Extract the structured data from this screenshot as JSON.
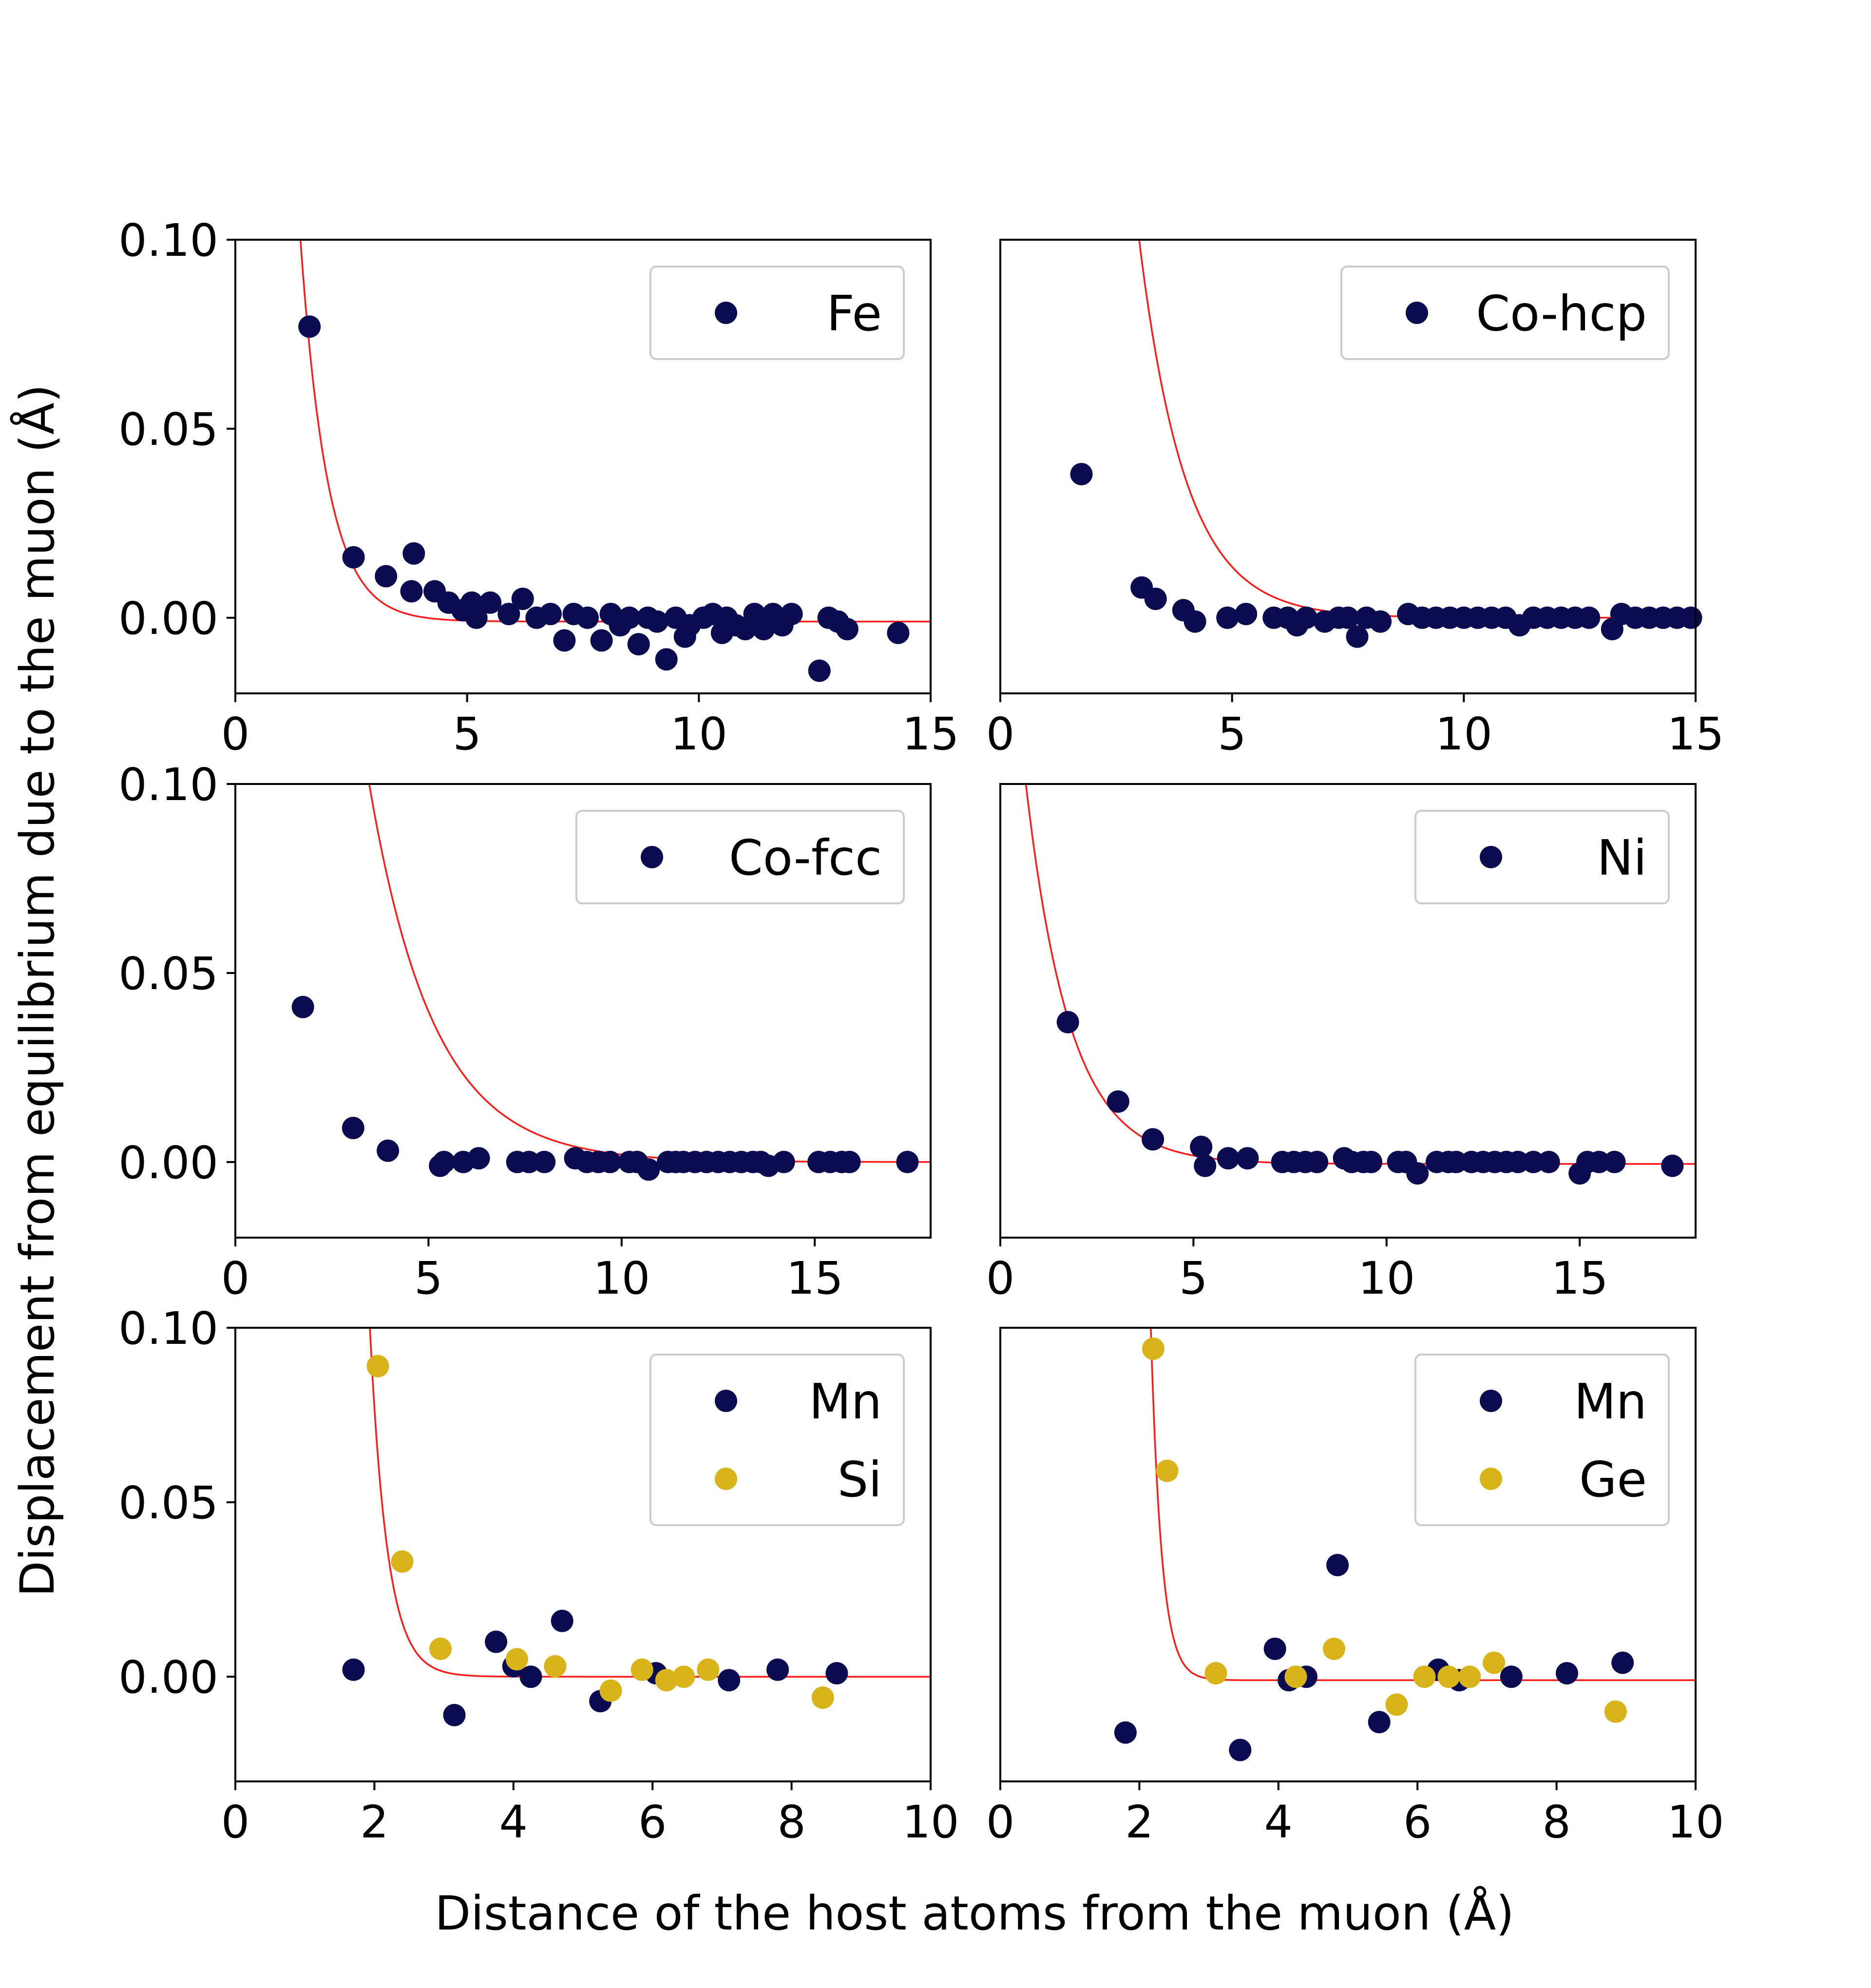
{
  "colors": {
    "host_a": "#0b0b52",
    "host_b": "#d8b41a",
    "fit": "#ff1a1a",
    "axes": "#000000",
    "legend_edge": "#cccccc"
  },
  "figure": {
    "xlabel": "Distance of the host atoms from the muon (Å)",
    "ylabel": "Displacement from equilibrium due to the muon (Å)"
  },
  "chart_data": [
    {
      "type": "scatter",
      "panel": "top-left",
      "xlim": [
        0,
        15
      ],
      "ylim": [
        -0.02,
        0.1
      ],
      "xticks": [
        0,
        5,
        10,
        15
      ],
      "yticks": [
        0.0,
        0.05,
        0.1
      ],
      "xtick_labels": [
        "0",
        "5",
        "10",
        "15"
      ],
      "ytick_labels": [
        "0.00",
        "0.05",
        "0.10"
      ],
      "legend_position": "upper-right",
      "fit": {
        "amplitude": 1.1,
        "decay": 1.7,
        "offset": -0.001
      },
      "series": [
        {
          "name": "Fe",
          "color_key": "host_a",
          "x": [
            1.6,
            2.55,
            3.25,
            3.8,
            3.85,
            4.3,
            4.6,
            4.9,
            5.1,
            5.2,
            5.5,
            5.9,
            6.2,
            6.5,
            6.8,
            7.1,
            7.3,
            7.6,
            7.9,
            8.1,
            8.3,
            8.5,
            8.7,
            8.9,
            9.1,
            9.3,
            9.5,
            9.7,
            9.8,
            10.1,
            10.3,
            10.5,
            10.6,
            10.8,
            11.0,
            11.2,
            11.4,
            11.6,
            11.8,
            12.0,
            12.6,
            12.8,
            13.0,
            13.2,
            14.3
          ],
          "y": [
            0.077,
            0.016,
            0.011,
            0.007,
            0.017,
            0.007,
            0.004,
            0.002,
            0.004,
            0.0,
            0.004,
            0.001,
            0.005,
            0.0,
            0.001,
            -0.006,
            0.001,
            0.0,
            -0.006,
            0.001,
            -0.002,
            0.0,
            -0.007,
            0.0,
            -0.001,
            -0.011,
            0.0,
            -0.005,
            -0.002,
            0.0,
            0.001,
            -0.004,
            0.0,
            -0.002,
            -0.003,
            0.001,
            -0.003,
            0.001,
            -0.002,
            0.001,
            -0.014,
            0.0,
            -0.001,
            -0.003,
            -0.004
          ]
        }
      ]
    },
    {
      "type": "scatter",
      "panel": "top-right",
      "xlim": [
        0,
        15
      ],
      "ylim": [
        -0.02,
        0.1
      ],
      "xticks": [
        0,
        5,
        10,
        15
      ],
      "yticks": [],
      "xtick_labels": [
        "0",
        "5",
        "10",
        "15"
      ],
      "ytick_labels": [],
      "legend_position": "upper-right",
      "fit": {
        "amplitude": 2.0,
        "decay": 1.0,
        "offset": 0.0
      },
      "series": [
        {
          "name": "Co-hcp",
          "color_key": "host_a",
          "x": [
            1.75,
            3.05,
            3.35,
            3.95,
            4.2,
            4.9,
            5.3,
            5.9,
            6.2,
            6.4,
            6.6,
            7.0,
            7.3,
            7.5,
            7.7,
            7.9,
            8.2,
            8.8,
            9.1,
            9.4,
            9.7,
            10.0,
            10.3,
            10.6,
            10.9,
            11.2,
            11.5,
            11.8,
            12.1,
            12.4,
            12.7,
            13.2,
            13.4,
            13.7,
            14.0,
            14.3,
            14.6,
            14.9
          ],
          "y": [
            0.038,
            0.008,
            0.005,
            0.002,
            -0.001,
            0.0,
            0.001,
            0.0,
            0.0,
            -0.002,
            0.0,
            -0.001,
            0.0,
            0.0,
            -0.005,
            0.0,
            -0.001,
            0.001,
            0.0,
            0.0,
            0.0,
            0.0,
            0.0,
            0.0,
            0.0,
            -0.002,
            0.0,
            0.0,
            0.0,
            0.0,
            0.0,
            -0.003,
            0.001,
            0.0,
            0.0,
            0.0,
            0.0,
            0.0
          ]
        }
      ]
    },
    {
      "type": "scatter",
      "panel": "middle-left",
      "xlim": [
        0,
        18
      ],
      "ylim": [
        -0.02,
        0.1
      ],
      "xticks": [
        0,
        5,
        10,
        15
      ],
      "yticks": [
        0.0,
        0.05,
        0.1
      ],
      "xtick_labels": [
        "0",
        "5",
        "10",
        "15"
      ],
      "ytick_labels": [
        "0.00",
        "0.05",
        "0.10"
      ],
      "legend_position": "upper-right",
      "fit": {
        "amplitude": 0.8,
        "decay": 0.6,
        "offset": 0.0
      },
      "series": [
        {
          "name": "Co-fcc",
          "color_key": "host_a",
          "x": [
            1.75,
            3.05,
            3.95,
            5.3,
            5.4,
            5.9,
            6.3,
            7.3,
            7.6,
            8.0,
            8.8,
            9.1,
            9.4,
            9.7,
            10.2,
            10.4,
            10.7,
            11.2,
            11.4,
            11.6,
            11.9,
            12.2,
            12.5,
            12.8,
            13.1,
            13.4,
            13.6,
            13.8,
            14.2,
            15.1,
            15.4,
            15.7,
            15.9,
            17.4
          ],
          "y": [
            0.041,
            0.009,
            0.003,
            -0.001,
            0.0,
            0.0,
            0.001,
            0.0,
            0.0,
            0.0,
            0.001,
            0.0,
            0.0,
            0.0,
            0.0,
            0.0,
            -0.002,
            0.0,
            0.0,
            0.0,
            0.0,
            0.0,
            0.0,
            0.0,
            0.0,
            0.0,
            0.0,
            -0.001,
            0.0,
            0.0,
            0.0,
            0.0,
            0.0,
            0.0
          ]
        }
      ]
    },
    {
      "type": "scatter",
      "panel": "middle-right",
      "xlim": [
        0,
        18
      ],
      "ylim": [
        -0.02,
        0.1
      ],
      "xticks": [
        0,
        5,
        10,
        15
      ],
      "yticks": [],
      "xtick_labels": [
        "0",
        "5",
        "10",
        "15"
      ],
      "ytick_labels": [],
      "legend_position": "upper-right",
      "fit": {
        "amplitude": 0.18,
        "decay": 0.88,
        "offset": -0.0005
      },
      "series": [
        {
          "name": "Ni",
          "color_key": "host_a",
          "x": [
            1.75,
            3.05,
            3.95,
            5.2,
            5.3,
            5.9,
            6.4,
            7.3,
            7.6,
            7.9,
            8.2,
            8.9,
            9.1,
            9.4,
            9.6,
            10.3,
            10.5,
            10.8,
            11.3,
            11.6,
            11.8,
            12.2,
            12.5,
            12.8,
            13.1,
            13.4,
            13.8,
            14.2,
            15.0,
            15.2,
            15.5,
            15.9,
            17.4
          ],
          "y": [
            0.037,
            0.016,
            0.006,
            0.004,
            -0.001,
            0.001,
            0.001,
            0.0,
            0.0,
            0.0,
            0.0,
            0.001,
            0.0,
            0.0,
            0.0,
            0.0,
            0.0,
            -0.003,
            0.0,
            0.0,
            0.0,
            0.0,
            0.0,
            0.0,
            0.0,
            0.0,
            0.0,
            0.0,
            -0.003,
            0.0,
            0.0,
            0.0,
            -0.001
          ]
        }
      ]
    },
    {
      "type": "scatter",
      "panel": "bottom-left",
      "xlim": [
        0,
        10
      ],
      "ylim": [
        -0.03,
        0.1
      ],
      "xticks": [
        0,
        2,
        4,
        6,
        8,
        10
      ],
      "yticks": [
        0.0,
        0.05,
        0.1
      ],
      "xtick_labels": [
        "0",
        "2",
        "4",
        "6",
        "8",
        "10"
      ],
      "ytick_labels": [
        "0.00",
        "0.05",
        "0.10"
      ],
      "legend_position": "upper-right",
      "fit": {
        "amplitude": 230,
        "decay": 4.0,
        "offset": 0.0
      },
      "series": [
        {
          "name": "Mn",
          "color_key": "host_a",
          "x": [
            1.7,
            3.15,
            3.75,
            4.0,
            4.25,
            4.7,
            5.25,
            6.05,
            7.1,
            7.8,
            8.65
          ],
          "y": [
            0.002,
            -0.011,
            0.01,
            0.003,
            0.0,
            0.016,
            -0.007,
            0.001,
            -0.001,
            0.002,
            0.001
          ]
        },
        {
          "name": "Si",
          "color_key": "host_b",
          "x": [
            2.05,
            2.4,
            2.95,
            4.05,
            4.6,
            5.4,
            5.85,
            6.2,
            6.45,
            6.8,
            8.45
          ],
          "y": [
            0.089,
            0.033,
            0.008,
            0.005,
            0.003,
            -0.004,
            0.002,
            -0.001,
            0.0,
            0.002,
            -0.006
          ]
        }
      ]
    },
    {
      "type": "scatter",
      "panel": "bottom-right",
      "xlim": [
        0,
        10
      ],
      "ylim": [
        -0.03,
        0.1
      ],
      "xticks": [
        0,
        2,
        4,
        6,
        8,
        10
      ],
      "yticks": [],
      "xtick_labels": [
        "0",
        "2",
        "4",
        "6",
        "8",
        "10"
      ],
      "ytick_labels": [],
      "legend_position": "upper-right",
      "fit": {
        "amplitude": 130000,
        "decay": 6.5,
        "offset": -0.001
      },
      "series": [
        {
          "name": "Mn",
          "color_key": "host_a",
          "x": [
            1.8,
            3.45,
            3.95,
            4.15,
            4.4,
            4.85,
            5.45,
            6.3,
            6.6,
            7.35,
            8.15,
            8.95
          ],
          "y": [
            -0.016,
            -0.021,
            0.008,
            -0.001,
            0.0,
            0.032,
            -0.013,
            0.002,
            -0.001,
            0.0,
            0.001,
            0.004
          ]
        },
        {
          "name": "Ge",
          "color_key": "host_b",
          "x": [
            2.2,
            2.4,
            3.1,
            4.25,
            4.8,
            5.7,
            6.1,
            6.45,
            6.75,
            7.1,
            8.85
          ],
          "y": [
            0.094,
            0.059,
            0.001,
            0.0,
            0.008,
            -0.008,
            0.0,
            0.0,
            0.0,
            0.004,
            -0.01
          ]
        }
      ]
    }
  ]
}
